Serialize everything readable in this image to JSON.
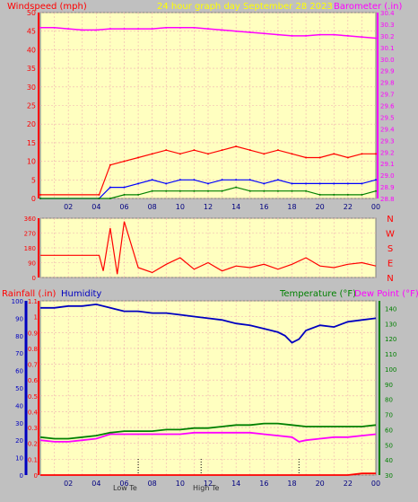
{
  "header": {
    "left_label": "Windspeed (mph)",
    "center_label": "24 hour graph day   September 28 2023",
    "right_label": "Barometer (.in)"
  },
  "bottom_header": {
    "rain_label": "Rainfall (.in)",
    "humidity_label": "Humidity",
    "temp_label": "Temperature (°F)",
    "dew_label": "Dew Point (°F)"
  },
  "colors": {
    "panel_bg": "#ffffc0",
    "frame": "#c0c0c0",
    "grid": "#f0b0b0",
    "red": "#ff0000",
    "blue": "#0000ff",
    "green": "#008000",
    "magenta": "#ff00ff",
    "dark_blue": "#0000c0",
    "yellow": "#ffff00"
  },
  "x_ticks": [
    "02",
    "04",
    "06",
    "08",
    "10",
    "12",
    "14",
    "16",
    "18",
    "20",
    "22",
    "00"
  ],
  "markers": {
    "low_temp": "Low Te",
    "high_temp": "High Te"
  },
  "chart_data": [
    {
      "type": "line",
      "title": "24 hour graph day   September 28 2023",
      "x_hours": [
        0,
        24
      ],
      "y_left": {
        "label": "Windspeed (mph)",
        "ylim": [
          0,
          50
        ],
        "ticks": [
          0,
          5,
          10,
          15,
          20,
          25,
          30,
          35,
          40,
          45,
          50
        ]
      },
      "y_right": {
        "label": "Barometer (.in)",
        "ylim": [
          28.8,
          30.4
        ],
        "ticks": [
          28.8,
          28.9,
          29.0,
          29.1,
          29.2,
          29.3,
          29.4,
          29.5,
          29.6,
          29.7,
          29.8,
          29.9,
          30.0,
          30.1,
          30.2,
          30.3,
          30.4
        ]
      },
      "series": [
        {
          "name": "Barometer (.in)",
          "color": "#ff00ff",
          "axis": "right",
          "x": [
            0,
            1,
            2,
            3,
            4,
            5,
            6,
            7,
            8,
            9,
            10,
            11,
            12,
            13,
            14,
            15,
            16,
            17,
            18,
            19,
            20,
            21,
            22,
            23,
            24
          ],
          "y": [
            30.27,
            30.27,
            30.26,
            30.25,
            30.25,
            30.26,
            30.26,
            30.26,
            30.26,
            30.27,
            30.27,
            30.27,
            30.26,
            30.25,
            30.24,
            30.23,
            30.22,
            30.21,
            30.2,
            30.2,
            30.21,
            30.21,
            30.2,
            30.19,
            30.18
          ]
        },
        {
          "name": "Gust",
          "color": "#ff0000",
          "axis": "left",
          "x": [
            0,
            4.2,
            5,
            6,
            7,
            8,
            9,
            10,
            11,
            12,
            13,
            14,
            15,
            16,
            17,
            18,
            19,
            20,
            21,
            22,
            23,
            24
          ],
          "y": [
            1,
            1,
            9,
            10,
            11,
            12,
            13,
            12,
            13,
            12,
            13,
            14,
            13,
            12,
            13,
            12,
            11,
            11,
            12,
            11,
            12,
            12
          ]
        },
        {
          "name": "Average",
          "color": "#0000ff",
          "axis": "left",
          "x": [
            0,
            4.2,
            5,
            6,
            7,
            8,
            9,
            10,
            11,
            12,
            13,
            14,
            15,
            16,
            17,
            18,
            19,
            20,
            21,
            22,
            23,
            24
          ],
          "y": [
            0,
            0,
            3,
            3,
            4,
            5,
            4,
            5,
            5,
            4,
            5,
            5,
            5,
            4,
            5,
            4,
            4,
            4,
            4,
            4,
            4,
            5
          ]
        },
        {
          "name": "Light",
          "color": "#008000",
          "axis": "left",
          "x": [
            0,
            4.2,
            5,
            6,
            7,
            8,
            9,
            10,
            11,
            12,
            13,
            14,
            15,
            16,
            17,
            18,
            19,
            20,
            21,
            22,
            23,
            24
          ],
          "y": [
            0,
            0,
            0,
            1,
            1,
            2,
            2,
            2,
            2,
            2,
            2,
            3,
            2,
            2,
            2,
            2,
            2,
            1,
            1,
            1,
            1,
            2
          ]
        }
      ]
    },
    {
      "type": "line",
      "title": "",
      "y_left": {
        "ticks": [
          0,
          90,
          180,
          270,
          360
        ],
        "ylim": [
          0,
          360
        ]
      },
      "y_right_labels": [
        "N",
        "W",
        "S",
        "E",
        "N"
      ],
      "series": [
        {
          "name": "Direction",
          "color": "#ff0000",
          "x": [
            0,
            1,
            2,
            3,
            4,
            4.2,
            4.5,
            5,
            5.5,
            6,
            7,
            8,
            9,
            10,
            11,
            12,
            13,
            14,
            15,
            16,
            17,
            18,
            19,
            20,
            21,
            22,
            23,
            24
          ],
          "y": [
            135,
            135,
            135,
            135,
            135,
            135,
            40,
            300,
            20,
            340,
            60,
            30,
            80,
            120,
            50,
            90,
            40,
            70,
            60,
            80,
            50,
            80,
            120,
            70,
            60,
            80,
            90,
            70
          ]
        }
      ]
    },
    {
      "type": "line",
      "title": "",
      "y_left_rain": {
        "label": "Rainfall (.in)",
        "ylim": [
          0,
          1.1
        ],
        "ticks": [
          0,
          0.1,
          0.2,
          0.3,
          0.4,
          0.5,
          0.6,
          0.7,
          0.8,
          0.9,
          1,
          1.1
        ]
      },
      "y_left_humidity": {
        "label": "Humidity",
        "ylim": [
          0,
          100
        ],
        "ticks": [
          0,
          10,
          20,
          30,
          40,
          50,
          60,
          70,
          80,
          90,
          100
        ]
      },
      "y_right": {
        "label": "Temperature (°F)",
        "ylim": [
          30,
          145
        ],
        "ticks": [
          30,
          40,
          50,
          60,
          70,
          80,
          90,
          100,
          110,
          120,
          130,
          140
        ]
      },
      "series": [
        {
          "name": "Humidity",
          "color": "#0000c0",
          "axis": "humidity",
          "x": [
            0,
            1,
            2,
            3,
            4,
            5,
            6,
            7,
            8,
            9,
            10,
            11,
            12,
            13,
            14,
            15,
            16,
            17,
            17.5,
            18,
            18.5,
            19,
            20,
            21,
            22,
            23,
            24
          ],
          "y": [
            96,
            96,
            97,
            97,
            98,
            96,
            94,
            94,
            93,
            93,
            92,
            91,
            90,
            89,
            87,
            86,
            84,
            82,
            80,
            76,
            78,
            83,
            86,
            85,
            88,
            89,
            90
          ]
        },
        {
          "name": "Temperature (°F)",
          "color": "#008000",
          "axis": "right",
          "x": [
            0,
            1,
            2,
            3,
            4,
            5,
            6,
            7,
            8,
            9,
            10,
            11,
            12,
            13,
            14,
            15,
            16,
            17,
            18,
            19,
            20,
            21,
            22,
            23,
            24
          ],
          "y": [
            55,
            54,
            54,
            55,
            56,
            58,
            59,
            59,
            59,
            60,
            60,
            61,
            61,
            62,
            63,
            63,
            64,
            64,
            63,
            62,
            62,
            62,
            62,
            62,
            63
          ]
        },
        {
          "name": "Dew Point (°F)",
          "color": "#ff00ff",
          "axis": "right",
          "x": [
            0,
            1,
            2,
            3,
            4,
            5,
            6,
            7,
            8,
            9,
            10,
            11,
            12,
            13,
            14,
            15,
            16,
            17,
            18,
            18.5,
            19,
            20,
            21,
            22,
            23,
            24
          ],
          "y": [
            53,
            52,
            52,
            53,
            54,
            57,
            57,
            57,
            57,
            57,
            57,
            58,
            58,
            58,
            58,
            58,
            57,
            56,
            55,
            52,
            53,
            54,
            55,
            55,
            56,
            57
          ]
        },
        {
          "name": "Rainfall (.in)",
          "color": "#ff0000",
          "axis": "rain",
          "x": [
            0,
            1,
            2,
            3,
            4,
            5,
            6,
            7,
            8,
            9,
            10,
            11,
            12,
            13,
            14,
            15,
            16,
            17,
            18,
            19,
            20,
            21,
            22,
            23,
            24
          ],
          "y": [
            0,
            0,
            0,
            0,
            0,
            0,
            0,
            0,
            0,
            0,
            0,
            0,
            0,
            0,
            0,
            0,
            0,
            0,
            0,
            0,
            0,
            0,
            0,
            0.01,
            0.01
          ]
        }
      ]
    }
  ]
}
